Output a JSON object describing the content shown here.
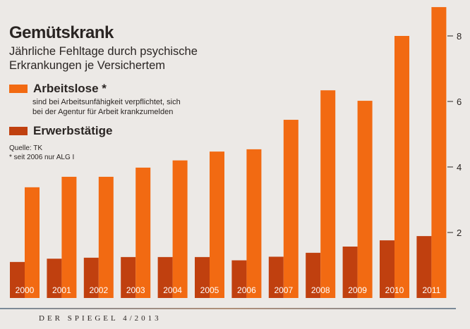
{
  "chart_data": {
    "type": "bar",
    "title": "Gemütskrank",
    "subtitle": "Jährliche Fehltage durch psychische Erkrankungen je Versichertem",
    "categories": [
      "2000",
      "2001",
      "2002",
      "2003",
      "2004",
      "2005",
      "2006",
      "2007",
      "2008",
      "2009",
      "2010",
      "2011"
    ],
    "series": [
      {
        "name": "Erwerbstätige",
        "color": "#c0400f",
        "values": [
          1.1,
          1.2,
          1.23,
          1.25,
          1.25,
          1.25,
          1.15,
          1.26,
          1.38,
          1.57,
          1.76,
          1.89
        ]
      },
      {
        "name": "Arbeitslose *",
        "color": "#f26a12",
        "values": [
          3.38,
          3.7,
          3.7,
          3.98,
          4.2,
          4.47,
          4.54,
          5.44,
          6.34,
          6.02,
          8.0,
          8.88
        ]
      }
    ],
    "legend_note": [
      "sind bei Arbeitsunfähigkeit verpflichtet, sich",
      "bei der Agentur für Arbeit krankzumelden"
    ],
    "yticks": [
      2,
      4,
      6,
      8
    ],
    "ylim": [
      0,
      9
    ],
    "y_axis_side": "right",
    "grid": false,
    "legend_placement": "top-left"
  },
  "source": "Quelle: TK",
  "footnote": "* seit 2006 nur ALG I",
  "footer": "DER SPIEGEL 4/2013"
}
